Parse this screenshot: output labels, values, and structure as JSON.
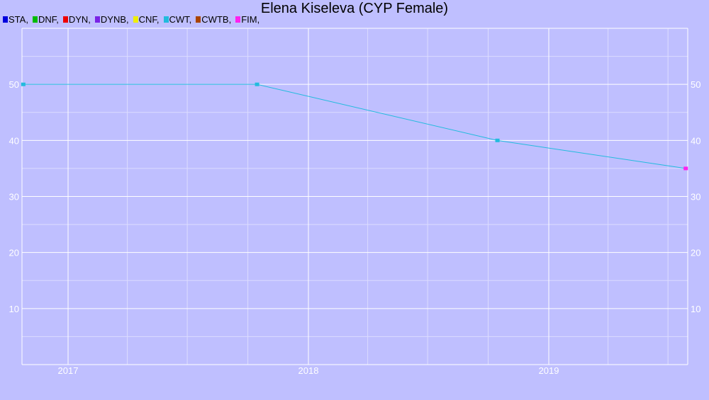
{
  "chart_data": {
    "type": "line",
    "title": "Elena Kiseleva (CYP Female)",
    "legend": [
      {
        "label": "STA,",
        "color": "#0000dd"
      },
      {
        "label": "DNF,",
        "color": "#00bb00"
      },
      {
        "label": "DYN,",
        "color": "#ee0000"
      },
      {
        "label": "DYNB,",
        "color": "#7a22e6"
      },
      {
        "label": "CNF,",
        "color": "#eeee00"
      },
      {
        "label": "CWT,",
        "color": "#22bbdd"
      },
      {
        "label": "CWTB,",
        "color": "#aa4400"
      },
      {
        "label": "FIM,",
        "color": "#ff22ee"
      }
    ],
    "legend_placement": "top-left",
    "grid": true,
    "xlim": [
      "2016-10-23",
      "2019-07-31"
    ],
    "ylim": [
      0,
      60
    ],
    "x_ticks": [
      {
        "label": "2017",
        "date": "2017-01-01"
      },
      {
        "label": "2018",
        "date": "2018-01-01"
      },
      {
        "label": "2019",
        "date": "2019-01-01"
      }
    ],
    "y_ticks": [
      10,
      20,
      30,
      40,
      50
    ],
    "series": [
      {
        "name": "CWT",
        "color": "#22bbdd",
        "points": [
          {
            "x": "2016-10-25",
            "y": 50
          },
          {
            "x": "2017-10-15",
            "y": 50
          },
          {
            "x": "2018-10-15",
            "y": 40
          }
        ]
      },
      {
        "name": "FIM",
        "color": "#ff22ee",
        "points": [
          {
            "x": "2019-07-28",
            "y": 35
          }
        ]
      }
    ],
    "connector": {
      "color": "#22bbdd",
      "from": {
        "x": "2018-10-15",
        "y": 40
      },
      "to": {
        "x": "2019-07-28",
        "y": 35
      }
    }
  }
}
